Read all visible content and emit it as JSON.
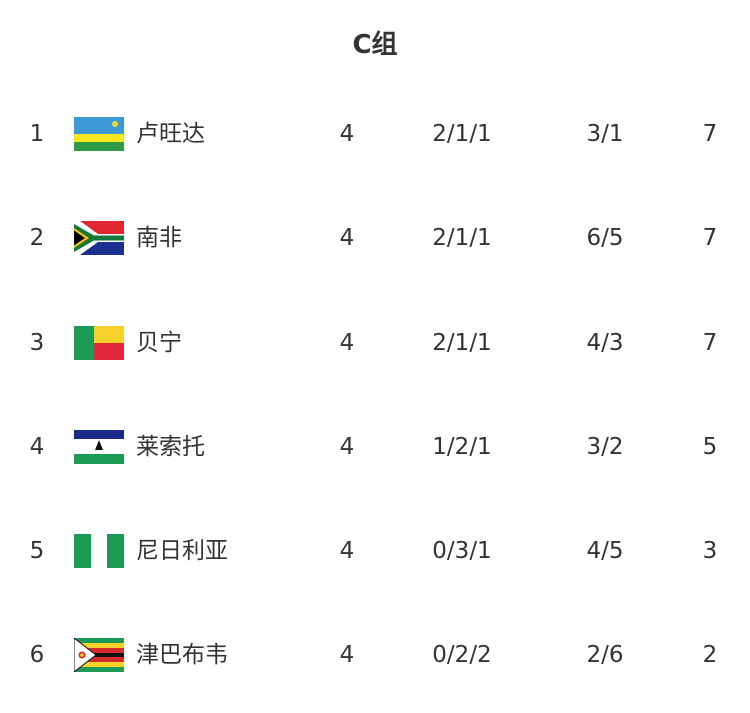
{
  "title": "C组",
  "rows": [
    {
      "rank": "1",
      "flag": "rwanda-flag-icon",
      "team": "卢旺达",
      "played": "4",
      "wdl": "2/1/1",
      "goals": "3/1",
      "points": "7"
    },
    {
      "rank": "2",
      "flag": "south-africa-flag-icon",
      "team": "南非",
      "played": "4",
      "wdl": "2/1/1",
      "goals": "6/5",
      "points": "7"
    },
    {
      "rank": "3",
      "flag": "benin-flag-icon",
      "team": "贝宁",
      "played": "4",
      "wdl": "2/1/1",
      "goals": "4/3",
      "points": "7"
    },
    {
      "rank": "4",
      "flag": "lesotho-flag-icon",
      "team": "莱索托",
      "played": "4",
      "wdl": "1/2/1",
      "goals": "3/2",
      "points": "5"
    },
    {
      "rank": "5",
      "flag": "nigeria-flag-icon",
      "team": "尼日利亚",
      "played": "4",
      "wdl": "0/3/1",
      "goals": "4/5",
      "points": "3"
    },
    {
      "rank": "6",
      "flag": "zimbabwe-flag-icon",
      "team": "津巴布韦",
      "played": "4",
      "wdl": "0/2/2",
      "goals": "2/6",
      "points": "2"
    }
  ]
}
